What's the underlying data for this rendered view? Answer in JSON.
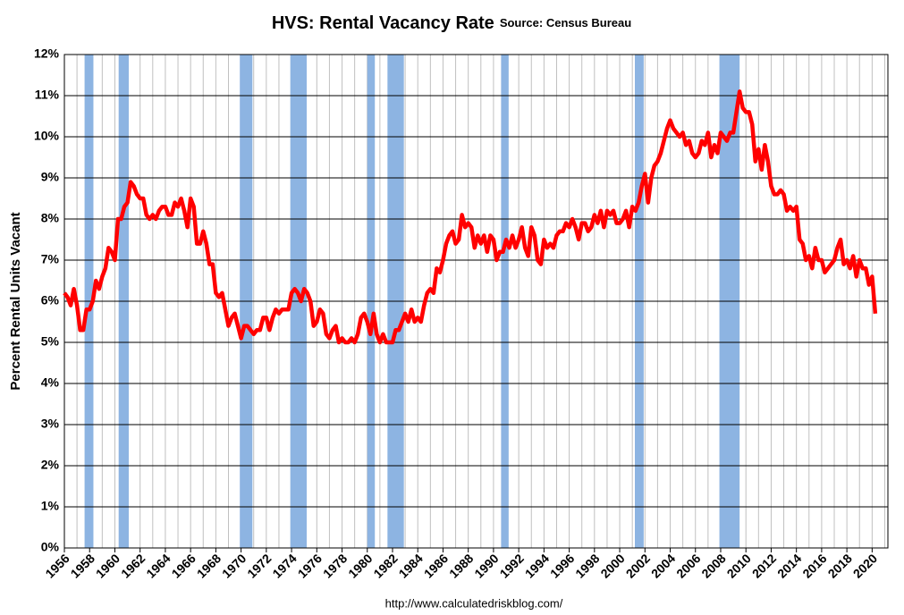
{
  "chart_data": {
    "type": "line",
    "title": "HVS: Rental Vacancy Rate",
    "subtitle": "Source: Census Bureau",
    "ylabel": "Percent Rental Units Vacant",
    "footer": "http://www.calculatedriskblog.com/",
    "xlim": [
      1956,
      2021.25
    ],
    "xticks": [
      1956,
      1958,
      1960,
      1962,
      1964,
      1966,
      1968,
      1970,
      1972,
      1974,
      1976,
      1978,
      1980,
      1982,
      1984,
      1986,
      1988,
      1990,
      1992,
      1994,
      1996,
      1998,
      2000,
      2002,
      2004,
      2006,
      2008,
      2010,
      2012,
      2014,
      2016,
      2018,
      2020
    ],
    "ylim": [
      0,
      12
    ],
    "yticks": [
      {
        "value": 0,
        "label": "0%"
      },
      {
        "value": 1,
        "label": "1%"
      },
      {
        "value": 2,
        "label": "2%"
      },
      {
        "value": 3,
        "label": "3%"
      },
      {
        "value": 4,
        "label": "4%"
      },
      {
        "value": 5,
        "label": "5%"
      },
      {
        "value": 6,
        "label": "6%"
      },
      {
        "value": 7,
        "label": "7%"
      },
      {
        "value": 8,
        "label": "8%"
      },
      {
        "value": 9,
        "label": "9%"
      },
      {
        "value": 10,
        "label": "10%"
      },
      {
        "value": 11,
        "label": "11%"
      },
      {
        "value": 12,
        "label": "12%"
      }
    ],
    "grid": true,
    "recession_color": "#8db4e2",
    "recessions": [
      [
        1957.6,
        1958.3
      ],
      [
        1960.3,
        1961.1
      ],
      [
        1969.9,
        1970.9
      ],
      [
        1973.9,
        1975.2
      ],
      [
        1980.0,
        1980.6
      ],
      [
        1981.6,
        1982.9
      ],
      [
        1990.6,
        1991.2
      ],
      [
        2001.2,
        2001.9
      ],
      [
        2007.9,
        2009.5
      ]
    ],
    "series": [
      {
        "color": "#ff0000",
        "x": [
          1956,
          1956.25,
          1956.5,
          1956.75,
          1957,
          1957.25,
          1957.5,
          1957.75,
          1958,
          1958.25,
          1958.5,
          1958.75,
          1959,
          1959.25,
          1959.5,
          1959.75,
          1960,
          1960.25,
          1960.5,
          1960.75,
          1961,
          1961.25,
          1961.5,
          1961.75,
          1962,
          1962.25,
          1962.5,
          1962.75,
          1963,
          1963.25,
          1963.5,
          1963.75,
          1964,
          1964.25,
          1964.5,
          1964.75,
          1965,
          1965.25,
          1965.5,
          1965.75,
          1966,
          1966.25,
          1966.5,
          1966.75,
          1967,
          1967.25,
          1967.5,
          1967.75,
          1968,
          1968.25,
          1968.5,
          1968.75,
          1969,
          1969.25,
          1969.5,
          1969.75,
          1970,
          1970.25,
          1970.5,
          1970.75,
          1971,
          1971.25,
          1971.5,
          1971.75,
          1972,
          1972.25,
          1972.5,
          1972.75,
          1973,
          1973.25,
          1973.5,
          1973.75,
          1974,
          1974.25,
          1974.5,
          1974.75,
          1975,
          1975.25,
          1975.5,
          1975.75,
          1976,
          1976.25,
          1976.5,
          1976.75,
          1977,
          1977.25,
          1977.5,
          1977.75,
          1978,
          1978.25,
          1978.5,
          1978.75,
          1979,
          1979.25,
          1979.5,
          1979.75,
          1980,
          1980.25,
          1980.5,
          1980.75,
          1981,
          1981.25,
          1981.5,
          1981.75,
          1982,
          1982.25,
          1982.5,
          1982.75,
          1983,
          1983.25,
          1983.5,
          1983.75,
          1984,
          1984.25,
          1984.5,
          1984.75,
          1985,
          1985.25,
          1985.5,
          1985.75,
          1986,
          1986.25,
          1986.5,
          1986.75,
          1987,
          1987.25,
          1987.5,
          1987.75,
          1988,
          1988.25,
          1988.5,
          1988.75,
          1989,
          1989.25,
          1989.5,
          1989.75,
          1990,
          1990.25,
          1990.5,
          1990.75,
          1991,
          1991.25,
          1991.5,
          1991.75,
          1992,
          1992.25,
          1992.5,
          1992.75,
          1993,
          1993.25,
          1993.5,
          1993.75,
          1994,
          1994.25,
          1994.5,
          1994.75,
          1995,
          1995.25,
          1995.5,
          1995.75,
          1996,
          1996.25,
          1996.5,
          1996.75,
          1997,
          1997.25,
          1997.5,
          1997.75,
          1998,
          1998.25,
          1998.5,
          1998.75,
          1999,
          1999.25,
          1999.5,
          1999.75,
          2000,
          2000.25,
          2000.5,
          2000.75,
          2001,
          2001.25,
          2001.5,
          2001.75,
          2002,
          2002.25,
          2002.5,
          2002.75,
          2003,
          2003.25,
          2003.5,
          2003.75,
          2004,
          2004.25,
          2004.5,
          2004.75,
          2005,
          2005.25,
          2005.5,
          2005.75,
          2006,
          2006.25,
          2006.5,
          2006.75,
          2007,
          2007.25,
          2007.5,
          2007.75,
          2008,
          2008.25,
          2008.5,
          2008.75,
          2009,
          2009.25,
          2009.5,
          2009.75,
          2010,
          2010.25,
          2010.5,
          2010.75,
          2011,
          2011.25,
          2011.5,
          2011.75,
          2012,
          2012.25,
          2012.5,
          2012.75,
          2013,
          2013.25,
          2013.5,
          2013.75,
          2014,
          2014.25,
          2014.5,
          2014.75,
          2015,
          2015.25,
          2015.5,
          2015.75,
          2016,
          2016.25,
          2016.5,
          2016.75,
          2017,
          2017.25,
          2017.5,
          2017.75,
          2018,
          2018.25,
          2018.5,
          2018.75,
          2019,
          2019.25,
          2019.5,
          2019.75,
          2020,
          2020.25
        ],
        "values": [
          6.2,
          6.1,
          5.9,
          6.3,
          5.9,
          5.3,
          5.3,
          5.8,
          5.8,
          6.0,
          6.5,
          6.3,
          6.6,
          6.8,
          7.3,
          7.2,
          7.0,
          8.0,
          8.0,
          8.3,
          8.4,
          8.9,
          8.8,
          8.6,
          8.5,
          8.5,
          8.1,
          8.0,
          8.1,
          8.0,
          8.2,
          8.3,
          8.3,
          8.1,
          8.1,
          8.4,
          8.3,
          8.5,
          8.2,
          7.8,
          8.5,
          8.3,
          7.4,
          7.4,
          7.7,
          7.4,
          6.9,
          6.9,
          6.2,
          6.1,
          6.2,
          5.8,
          5.4,
          5.6,
          5.7,
          5.4,
          5.1,
          5.4,
          5.4,
          5.3,
          5.2,
          5.3,
          5.3,
          5.6,
          5.6,
          5.3,
          5.6,
          5.8,
          5.7,
          5.8,
          5.8,
          5.8,
          6.2,
          6.3,
          6.2,
          6.0,
          6.3,
          6.2,
          6.0,
          5.4,
          5.5,
          5.8,
          5.7,
          5.2,
          5.1,
          5.3,
          5.4,
          5.0,
          5.1,
          5.0,
          5.0,
          5.1,
          5.0,
          5.2,
          5.6,
          5.7,
          5.5,
          5.2,
          5.7,
          5.2,
          5.0,
          5.2,
          5.0,
          5.0,
          5.0,
          5.3,
          5.3,
          5.5,
          5.7,
          5.5,
          5.8,
          5.5,
          5.6,
          5.5,
          5.9,
          6.2,
          6.3,
          6.2,
          6.8,
          6.7,
          7.0,
          7.4,
          7.6,
          7.7,
          7.4,
          7.5,
          8.1,
          7.8,
          7.9,
          7.8,
          7.3,
          7.6,
          7.4,
          7.6,
          7.2,
          7.6,
          7.5,
          7.0,
          7.2,
          7.2,
          7.5,
          7.3,
          7.6,
          7.3,
          7.5,
          7.8,
          7.3,
          7.1,
          7.8,
          7.6,
          7.0,
          6.9,
          7.5,
          7.3,
          7.4,
          7.3,
          7.6,
          7.7,
          7.7,
          7.9,
          7.8,
          8.0,
          7.8,
          7.5,
          7.9,
          7.9,
          7.7,
          7.8,
          8.1,
          7.9,
          8.2,
          7.8,
          8.2,
          8.1,
          8.2,
          7.9,
          7.9,
          8.0,
          8.2,
          7.8,
          8.3,
          8.2,
          8.4,
          8.8,
          9.1,
          8.4,
          9.0,
          9.3,
          9.4,
          9.6,
          9.9,
          10.2,
          10.4,
          10.2,
          10.1,
          10.0,
          10.1,
          9.8,
          9.9,
          9.6,
          9.5,
          9.6,
          9.9,
          9.8,
          10.1,
          9.5,
          9.8,
          9.6,
          10.1,
          10.0,
          9.9,
          10.1,
          10.1,
          10.6,
          11.1,
          10.7,
          10.6,
          10.6,
          10.3,
          9.4,
          9.7,
          9.2,
          9.8,
          9.4,
          8.8,
          8.6,
          8.6,
          8.7,
          8.6,
          8.2,
          8.3,
          8.2,
          8.3,
          7.5,
          7.4,
          7.0,
          7.1,
          6.8,
          7.3,
          7.0,
          7.0,
          6.7,
          6.8,
          6.9,
          7.0,
          7.3,
          7.5,
          6.9,
          7.0,
          6.8,
          7.1,
          6.6,
          7.0,
          6.8,
          6.8,
          6.4,
          6.6,
          5.7
        ]
      }
    ]
  }
}
